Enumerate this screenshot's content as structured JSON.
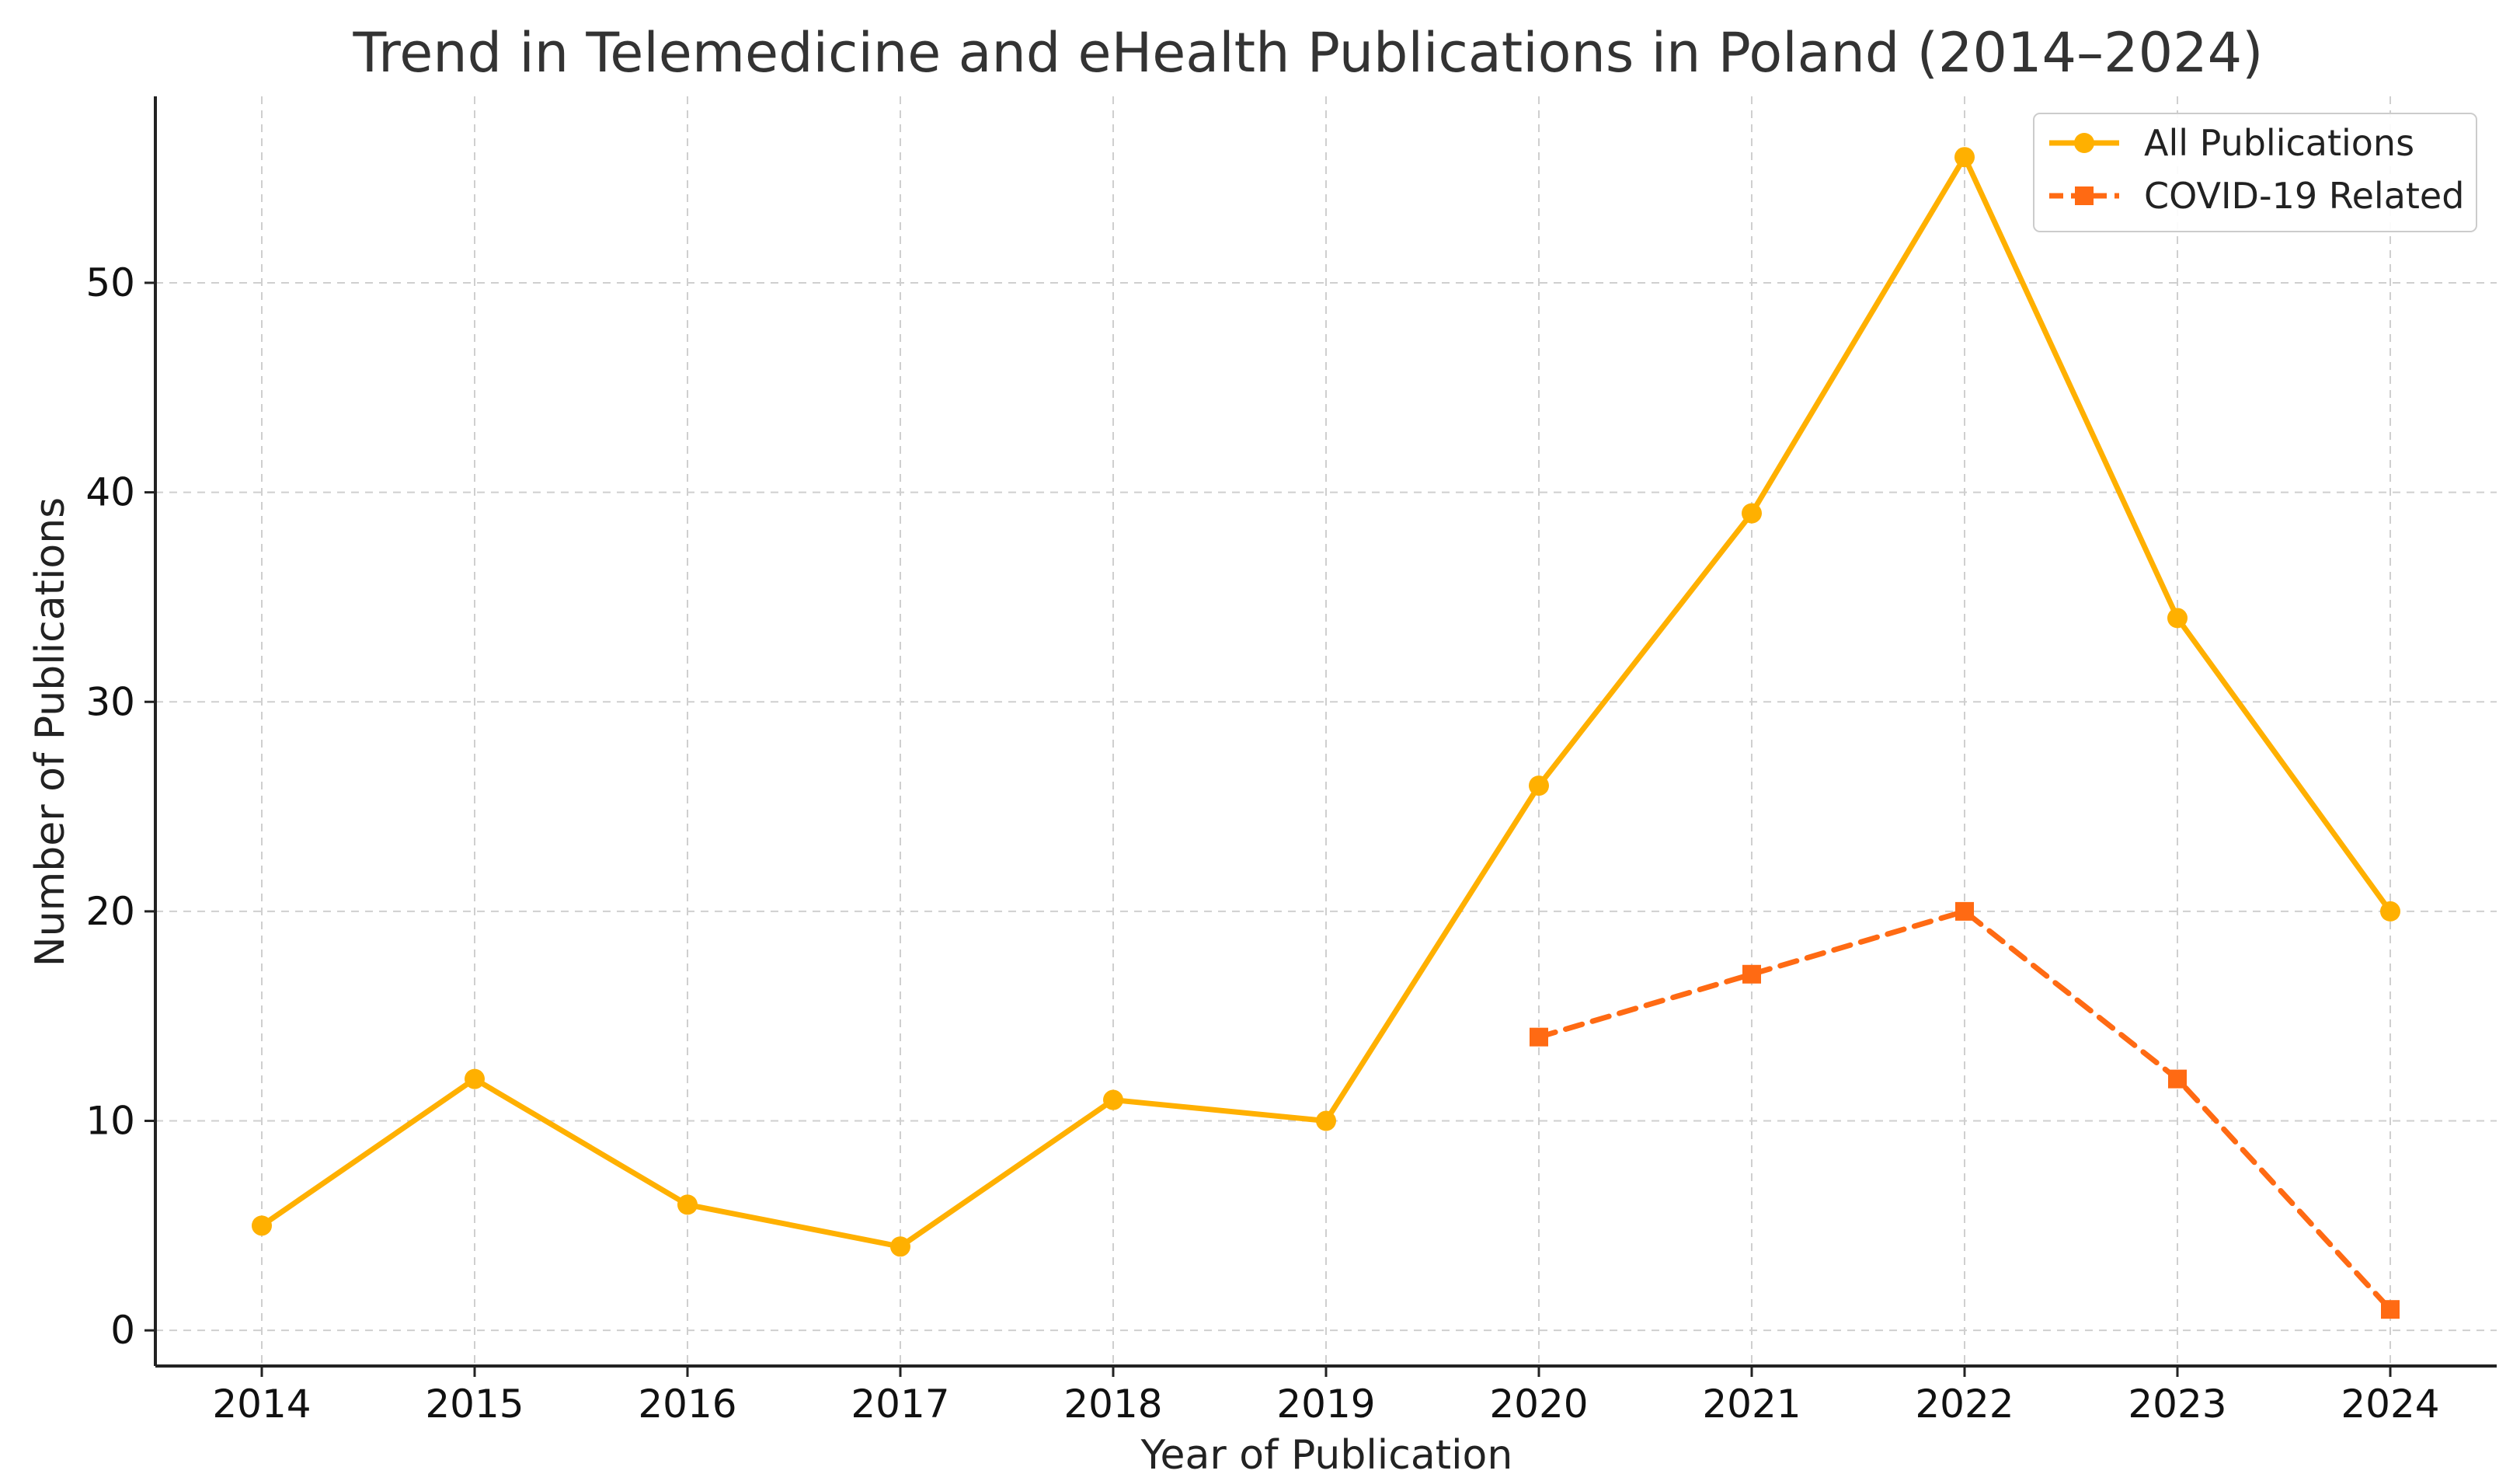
{
  "chart_data": {
    "type": "line",
    "title": "Trend in Telemedicine and eHealth Publications in Poland (2014–2024)",
    "xlabel": "Year of Publication",
    "ylabel": "Number of Publications",
    "x": [
      2014,
      2015,
      2016,
      2017,
      2018,
      2019,
      2020,
      2021,
      2022,
      2023,
      2024
    ],
    "x_tick_labels": [
      "2014",
      "2015",
      "2016",
      "2017",
      "2018",
      "2019",
      "2020",
      "2021",
      "2022",
      "2023",
      "2024"
    ],
    "y_ticks": [
      0,
      10,
      20,
      30,
      40,
      50
    ],
    "y_tick_labels": [
      "0",
      "10",
      "20",
      "30",
      "40",
      "50"
    ],
    "xlim": [
      2013.5,
      2024.5
    ],
    "ylim": [
      -1.7,
      58.9
    ],
    "grid": true,
    "legend_position": "top-right",
    "series": [
      {
        "name": "All Publications",
        "color": "#FFB000",
        "marker": "circle",
        "line_style": "solid",
        "x": [
          2014,
          2015,
          2016,
          2017,
          2018,
          2019,
          2020,
          2021,
          2022,
          2023,
          2024
        ],
        "values": [
          5,
          12,
          6,
          4,
          11,
          10,
          26,
          39,
          56,
          34,
          20
        ]
      },
      {
        "name": "COVID-19 Related",
        "color": "#FF6A13",
        "marker": "square",
        "line_style": "dashed",
        "x": [
          2020,
          2021,
          2022,
          2023,
          2024
        ],
        "values": [
          14,
          17,
          20,
          12,
          1
        ]
      }
    ]
  }
}
